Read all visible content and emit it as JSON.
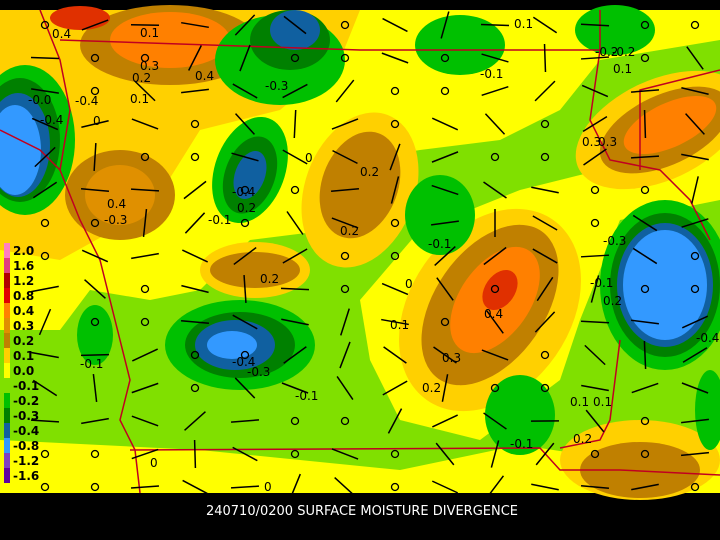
{
  "caption": "240710/0200 SURFACE MOISTURE DIVERGENCE",
  "legend": [
    {
      "label": "2.0",
      "color": "#ff7fbf"
    },
    {
      "label": "1.6",
      "color": "#e0407f"
    },
    {
      "label": "1.2",
      "color": "#b00000"
    },
    {
      "label": "0.8",
      "color": "#e00000"
    },
    {
      "label": "0.4",
      "color": "#ff8000"
    },
    {
      "label": "0.3",
      "color": "#e09000"
    },
    {
      "label": "0.2",
      "color": "#c08000"
    },
    {
      "label": "0.1",
      "color": "#ffd000"
    },
    {
      "label": "0.0",
      "color": "#ffff00"
    },
    {
      "label": "-0.1",
      "color": "#80e000"
    },
    {
      "label": "-0.2",
      "color": "#00c000"
    },
    {
      "label": "-0.3",
      "color": "#008000"
    },
    {
      "label": "-0.4",
      "color": "#1060a0"
    },
    {
      "label": "-0.8",
      "color": "#3399ff"
    },
    {
      "label": "-1.2",
      "color": "#8040c0"
    },
    {
      "label": "-1.6",
      "color": "#6000a0"
    }
  ],
  "contour_labels": [
    "0.4",
    "0.3",
    "0.2",
    "0.4",
    "0.1",
    "-0.4",
    "-0.3",
    "0.1",
    "-0.2",
    "0.1",
    "-0.0",
    "-0.4",
    "0",
    "0.4",
    "-0.3",
    "-0.4",
    "0.2",
    "-0.1",
    "0",
    "0.2",
    "-0.1",
    "0.3",
    "0.2",
    "-0.2",
    "0.4",
    "0.1",
    "0.3",
    "0.2",
    "-0.1",
    "-0.4",
    "-0.3",
    "-0.1",
    "0",
    "-0.1",
    "0.1",
    "0.2",
    "-0.1",
    "0.1",
    "0.2",
    "0",
    "0",
    "-0.4",
    "-0.3",
    "-0.1",
    "0.1",
    "0.2",
    "0.3"
  ]
}
